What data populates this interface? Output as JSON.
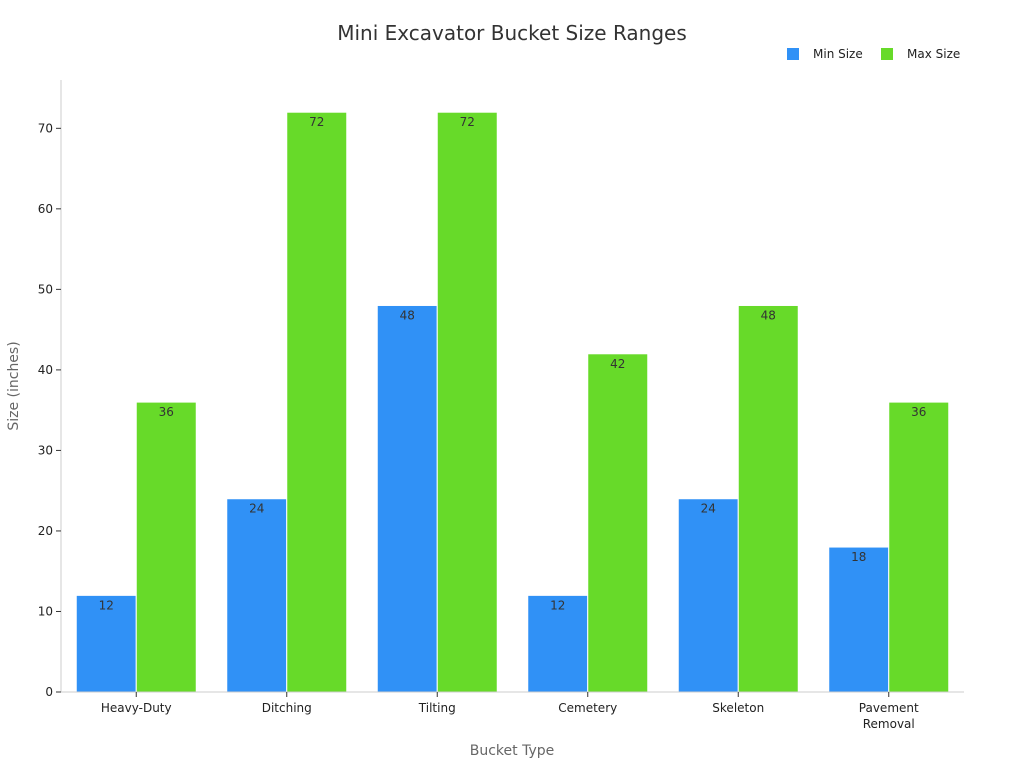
{
  "colors": {
    "min": "#3091f6",
    "max": "#67da29",
    "axis": "#cccccc",
    "text": "#222222"
  },
  "chart_data": {
    "type": "bar",
    "title": "Mini Excavator Bucket Size Ranges",
    "xlabel": "Bucket Type",
    "ylabel": "Size (inches)",
    "ylim": [
      0,
      76
    ],
    "yticks": [
      0,
      10,
      20,
      30,
      40,
      50,
      60,
      70
    ],
    "categories": [
      [
        "Heavy-Duty"
      ],
      [
        "Ditching"
      ],
      [
        "Tilting"
      ],
      [
        "Cemetery"
      ],
      [
        "Skeleton"
      ],
      [
        "Pavement",
        "Removal"
      ]
    ],
    "series": [
      {
        "name": "Min Size",
        "color_key": "min",
        "values": [
          12,
          24,
          48,
          12,
          24,
          18
        ]
      },
      {
        "name": "Max Size",
        "color_key": "max",
        "values": [
          36,
          72,
          72,
          42,
          48,
          36
        ]
      }
    ],
    "legend_position": "top-right",
    "grid": false
  }
}
